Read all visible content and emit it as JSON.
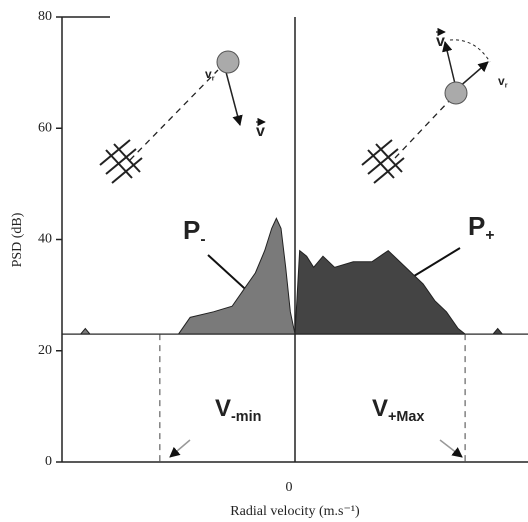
{
  "chart_data": {
    "type": "area",
    "xlabel": "Radial velocity (m.s⁻¹)",
    "ylabel": "PSD (dB)",
    "xlim": [
      -1,
      1
    ],
    "ylim": [
      0,
      80
    ],
    "xticks": [
      0
    ],
    "yticks": [
      0,
      20,
      40,
      60,
      80
    ],
    "series": [
      {
        "color": "#7a7a7a",
        "x": [
          -1,
          -0.92,
          -0.9,
          -0.88,
          -0.5,
          -0.45,
          -0.35,
          -0.27,
          -0.22,
          -0.17,
          -0.13,
          -0.1,
          -0.08,
          -0.06,
          -0.04,
          -0.02,
          0
        ],
        "values": [
          23,
          23,
          24,
          23,
          23,
          26,
          27,
          28,
          31,
          34,
          38,
          42,
          43.8,
          42,
          35,
          27,
          23
        ]
      },
      {
        "color": "#444444",
        "x": [
          0,
          0.02,
          0.05,
          0.08,
          0.12,
          0.17,
          0.25,
          0.33,
          0.4,
          0.45,
          0.5,
          0.55,
          0.6,
          0.65,
          0.7,
          0.73,
          0.85,
          0.87,
          0.89,
          1
        ],
        "values": [
          23,
          38,
          37,
          35,
          37,
          35,
          36,
          36,
          38,
          36,
          34,
          32,
          29,
          27,
          24,
          23,
          23,
          24,
          23,
          23
        ]
      }
    ],
    "labels": [
      {
        "text": "P",
        "sub": "-"
      },
      {
        "text": "P",
        "sub": "+"
      }
    ],
    "markers": [
      {
        "x": -0.58,
        "text": "V",
        "sub": "-min"
      },
      {
        "x": 0.73,
        "text": "V",
        "sub": "+Max"
      }
    ],
    "vectors": [
      {
        "text": "v",
        "sub": "r"
      },
      {
        "text": "v"
      },
      {
        "text": "v"
      },
      {
        "text": "v",
        "sub": "r"
      }
    ]
  }
}
